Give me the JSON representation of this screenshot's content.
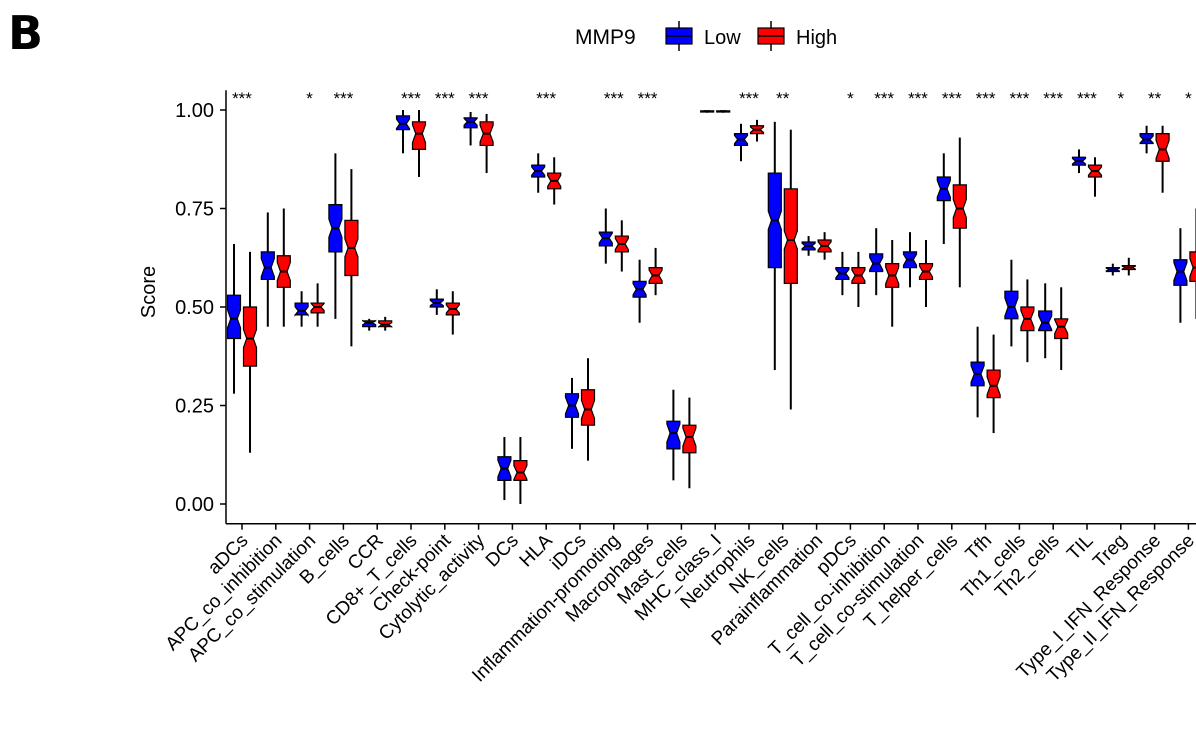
{
  "panel_label": "B",
  "chart_data": {
    "type": "box",
    "legend": {
      "title": "MMP9",
      "placement": "top",
      "items": [
        {
          "label": "Low",
          "color": "#0000ff"
        },
        {
          "label": "High",
          "color": "#ff0000"
        }
      ]
    },
    "ylabel": "Score",
    "xlabel": "",
    "ylim": [
      -0.05,
      1.05
    ],
    "yticks": [
      "0.00",
      "0.25",
      "0.50",
      "0.75",
      "1.00"
    ],
    "notched": true,
    "categories": [
      "aDCs",
      "APC_co_inhibition",
      "APC_co_stimulation",
      "B_cells",
      "CCR",
      "CD8+_T_cells",
      "Check-point",
      "Cytolytic_activity",
      "DCs",
      "HLA",
      "iDCs",
      "Inflammation-promoting",
      "Macrophages",
      "Mast_cells",
      "MHC_class_I",
      "Neutrophils",
      "NK_cells",
      "Parainflammation",
      "pDCs",
      "T_cell_co-inhibition",
      "T_cell_co-stimulation",
      "T_helper_cells",
      "Tfh",
      "Th1_cells",
      "Th2_cells",
      "TIL",
      "Treg",
      "Type_I_IFN_Response",
      "Type_II_IFN_Response"
    ],
    "significance": [
      "***",
      "",
      "*",
      "***",
      "",
      "***",
      "***",
      "***",
      "",
      "***",
      "",
      "***",
      "***",
      "",
      "",
      "***",
      "**",
      "",
      "*",
      "***",
      "***",
      "***",
      "***",
      "***",
      "***",
      "***",
      "*",
      "**",
      "*"
    ],
    "series": [
      {
        "name": "Low",
        "color": "#0000ff",
        "boxes": [
          {
            "whislo": 0.28,
            "q1": 0.42,
            "med": 0.47,
            "q3": 0.53,
            "whishi": 0.66
          },
          {
            "whislo": 0.45,
            "q1": 0.57,
            "med": 0.6,
            "q3": 0.64,
            "whishi": 0.74
          },
          {
            "whislo": 0.45,
            "q1": 0.48,
            "med": 0.49,
            "q3": 0.51,
            "whishi": 0.54
          },
          {
            "whislo": 0.47,
            "q1": 0.64,
            "med": 0.7,
            "q3": 0.76,
            "whishi": 0.89
          },
          {
            "whislo": 0.44,
            "q1": 0.45,
            "med": 0.46,
            "q3": 0.465,
            "whishi": 0.47
          },
          {
            "whislo": 0.89,
            "q1": 0.95,
            "med": 0.965,
            "q3": 0.985,
            "whishi": 1.0
          },
          {
            "whislo": 0.48,
            "q1": 0.5,
            "med": 0.51,
            "q3": 0.52,
            "whishi": 0.545
          },
          {
            "whislo": 0.91,
            "q1": 0.955,
            "med": 0.97,
            "q3": 0.98,
            "whishi": 0.995
          },
          {
            "whislo": 0.01,
            "q1": 0.06,
            "med": 0.09,
            "q3": 0.12,
            "whishi": 0.17
          },
          {
            "whislo": 0.79,
            "q1": 0.83,
            "med": 0.845,
            "q3": 0.86,
            "whishi": 0.89
          },
          {
            "whislo": 0.14,
            "q1": 0.22,
            "med": 0.25,
            "q3": 0.28,
            "whishi": 0.32
          },
          {
            "whislo": 0.61,
            "q1": 0.655,
            "med": 0.675,
            "q3": 0.69,
            "whishi": 0.75
          },
          {
            "whislo": 0.46,
            "q1": 0.525,
            "med": 0.545,
            "q3": 0.565,
            "whishi": 0.62
          },
          {
            "whislo": 0.06,
            "q1": 0.14,
            "med": 0.18,
            "q3": 0.21,
            "whishi": 0.29
          },
          {
            "whislo": 0.993,
            "q1": 0.995,
            "med": 0.997,
            "q3": 0.998,
            "whishi": 0.999
          },
          {
            "whislo": 0.87,
            "q1": 0.91,
            "med": 0.925,
            "q3": 0.94,
            "whishi": 0.965
          },
          {
            "whislo": 0.34,
            "q1": 0.6,
            "med": 0.72,
            "q3": 0.84,
            "whishi": 0.97
          },
          {
            "whislo": 0.63,
            "q1": 0.645,
            "med": 0.655,
            "q3": 0.665,
            "whishi": 0.68
          },
          {
            "whislo": 0.53,
            "q1": 0.57,
            "med": 0.585,
            "q3": 0.6,
            "whishi": 0.64
          },
          {
            "whislo": 0.53,
            "q1": 0.59,
            "med": 0.61,
            "q3": 0.635,
            "whishi": 0.7
          },
          {
            "whislo": 0.55,
            "q1": 0.6,
            "med": 0.62,
            "q3": 0.64,
            "whishi": 0.69
          },
          {
            "whislo": 0.66,
            "q1": 0.77,
            "med": 0.8,
            "q3": 0.83,
            "whishi": 0.89
          },
          {
            "whislo": 0.22,
            "q1": 0.3,
            "med": 0.33,
            "q3": 0.36,
            "whishi": 0.45
          },
          {
            "whislo": 0.4,
            "q1": 0.47,
            "med": 0.5,
            "q3": 0.54,
            "whishi": 0.62
          },
          {
            "whislo": 0.37,
            "q1": 0.44,
            "med": 0.46,
            "q3": 0.49,
            "whishi": 0.56
          },
          {
            "whislo": 0.84,
            "q1": 0.86,
            "med": 0.87,
            "q3": 0.88,
            "whishi": 0.9
          },
          {
            "whislo": 0.58,
            "q1": 0.59,
            "med": 0.595,
            "q3": 0.6,
            "whishi": 0.61
          },
          {
            "whislo": 0.89,
            "q1": 0.915,
            "med": 0.925,
            "q3": 0.94,
            "whishi": 0.96
          },
          {
            "whislo": 0.46,
            "q1": 0.555,
            "med": 0.59,
            "q3": 0.62,
            "whishi": 0.7
          }
        ]
      },
      {
        "name": "High",
        "color": "#ff0000",
        "boxes": [
          {
            "whislo": 0.13,
            "q1": 0.35,
            "med": 0.42,
            "q3": 0.5,
            "whishi": 0.64
          },
          {
            "whislo": 0.45,
            "q1": 0.55,
            "med": 0.59,
            "q3": 0.63,
            "whishi": 0.75
          },
          {
            "whislo": 0.45,
            "q1": 0.485,
            "med": 0.5,
            "q3": 0.51,
            "whishi": 0.56
          },
          {
            "whislo": 0.4,
            "q1": 0.58,
            "med": 0.65,
            "q3": 0.72,
            "whishi": 0.85
          },
          {
            "whislo": 0.44,
            "q1": 0.45,
            "med": 0.455,
            "q3": 0.465,
            "whishi": 0.475
          },
          {
            "whislo": 0.83,
            "q1": 0.9,
            "med": 0.94,
            "q3": 0.97,
            "whishi": 1.0
          },
          {
            "whislo": 0.43,
            "q1": 0.48,
            "med": 0.495,
            "q3": 0.51,
            "whishi": 0.54
          },
          {
            "whislo": 0.84,
            "q1": 0.91,
            "med": 0.94,
            "q3": 0.97,
            "whishi": 0.99
          },
          {
            "whislo": 0.0,
            "q1": 0.06,
            "med": 0.08,
            "q3": 0.11,
            "whishi": 0.17
          },
          {
            "whislo": 0.76,
            "q1": 0.8,
            "med": 0.82,
            "q3": 0.84,
            "whishi": 0.88
          },
          {
            "whislo": 0.11,
            "q1": 0.2,
            "med": 0.24,
            "q3": 0.29,
            "whishi": 0.37
          },
          {
            "whislo": 0.59,
            "q1": 0.64,
            "med": 0.66,
            "q3": 0.68,
            "whishi": 0.72
          },
          {
            "whislo": 0.53,
            "q1": 0.56,
            "med": 0.58,
            "q3": 0.6,
            "whishi": 0.65
          },
          {
            "whislo": 0.04,
            "q1": 0.13,
            "med": 0.17,
            "q3": 0.2,
            "whishi": 0.27
          },
          {
            "whislo": 0.993,
            "q1": 0.995,
            "med": 0.997,
            "q3": 0.998,
            "whishi": 0.999
          },
          {
            "whislo": 0.92,
            "q1": 0.94,
            "med": 0.95,
            "q3": 0.96,
            "whishi": 0.975
          },
          {
            "whislo": 0.24,
            "q1": 0.56,
            "med": 0.67,
            "q3": 0.8,
            "whishi": 0.95
          },
          {
            "whislo": 0.62,
            "q1": 0.64,
            "med": 0.655,
            "q3": 0.67,
            "whishi": 0.69
          },
          {
            "whislo": 0.5,
            "q1": 0.56,
            "med": 0.58,
            "q3": 0.6,
            "whishi": 0.64
          },
          {
            "whislo": 0.45,
            "q1": 0.55,
            "med": 0.58,
            "q3": 0.61,
            "whishi": 0.67
          },
          {
            "whislo": 0.5,
            "q1": 0.57,
            "med": 0.59,
            "q3": 0.61,
            "whishi": 0.67
          },
          {
            "whislo": 0.55,
            "q1": 0.7,
            "med": 0.75,
            "q3": 0.81,
            "whishi": 0.93
          },
          {
            "whislo": 0.18,
            "q1": 0.27,
            "med": 0.3,
            "q3": 0.34,
            "whishi": 0.43
          },
          {
            "whislo": 0.36,
            "q1": 0.44,
            "med": 0.47,
            "q3": 0.5,
            "whishi": 0.57
          },
          {
            "whislo": 0.34,
            "q1": 0.42,
            "med": 0.45,
            "q3": 0.47,
            "whishi": 0.55
          },
          {
            "whislo": 0.78,
            "q1": 0.83,
            "med": 0.845,
            "q3": 0.86,
            "whishi": 0.88
          },
          {
            "whislo": 0.58,
            "q1": 0.595,
            "med": 0.6,
            "q3": 0.605,
            "whishi": 0.625
          },
          {
            "whislo": 0.79,
            "q1": 0.87,
            "med": 0.9,
            "q3": 0.94,
            "whishi": 0.96
          },
          {
            "whislo": 0.47,
            "q1": 0.565,
            "med": 0.6,
            "q3": 0.64,
            "whishi": 0.75
          }
        ]
      }
    ]
  }
}
